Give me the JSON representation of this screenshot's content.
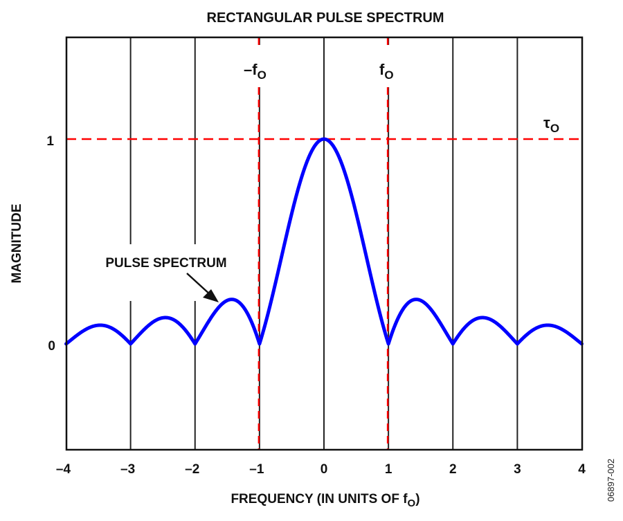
{
  "chart_data": {
    "type": "line",
    "title": "RECTANGULAR PULSE SPECTRUM",
    "xlabel": "FREQUENCY (IN UNITS OF f",
    "xlabel_subscript": "O",
    "xlabel_suffix": ")",
    "ylabel": "MAGNITUDE",
    "xlim": [
      -4,
      4
    ],
    "ylim": [
      -0.5,
      1.5
    ],
    "grid": true,
    "x_ticks": [
      -4,
      -3,
      -2,
      -1,
      0,
      1,
      2,
      3,
      4
    ],
    "x_tick_labels": [
      "–4",
      "–3",
      "–2",
      "–1",
      "0",
      "1",
      "2",
      "3",
      "4"
    ],
    "y_ticks": [
      0,
      1
    ],
    "y_tick_labels": [
      "0",
      "1"
    ],
    "series": [
      {
        "name": "PULSE SPECTRUM",
        "color": "#0000ff",
        "function": "|sin(pi f)/(pi f)|",
        "x": [
          -4,
          -3.5,
          -3,
          -2.5,
          -2,
          -1.5,
          -1,
          -0.75,
          -0.5,
          -0.25,
          0,
          0.25,
          0.5,
          0.75,
          1,
          1.5,
          2,
          2.5,
          3,
          3.5,
          4
        ],
        "values": [
          0,
          0.091,
          0,
          0.127,
          0,
          0.212,
          0,
          0.3,
          0.637,
          0.9,
          1,
          0.9,
          0.637,
          0.3,
          0,
          0.212,
          0,
          0.127,
          0,
          0.091,
          0
        ]
      }
    ],
    "reference_lines": [
      {
        "orientation": "vertical",
        "x": -1,
        "label": "–f",
        "label_subscript": "O",
        "color": "#ff0000",
        "style": "dashed"
      },
      {
        "orientation": "vertical",
        "x": 1,
        "label": "f",
        "label_subscript": "O",
        "color": "#ff0000",
        "style": "dashed"
      },
      {
        "orientation": "horizontal",
        "y": 1,
        "label": "τ",
        "label_subscript": "O",
        "color": "#ff0000",
        "style": "dashed"
      }
    ],
    "annotations": [
      {
        "text": "PULSE SPECTRUM",
        "arrow_to": {
          "x": -1.6,
          "y": 0.2
        }
      }
    ],
    "figure_code": "06897-002"
  },
  "colors": {
    "curve": "#0000ff",
    "reference": "#ff0000",
    "grid": "#222222",
    "frame": "#111111"
  }
}
